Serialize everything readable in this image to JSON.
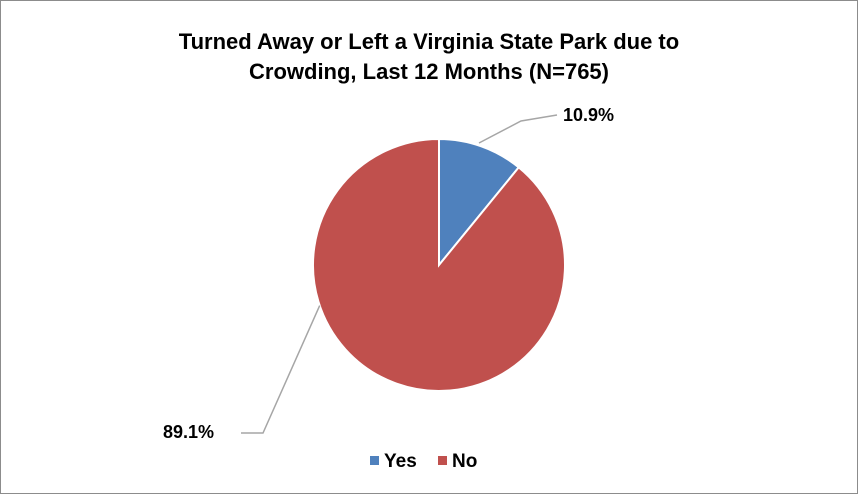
{
  "chart_data": {
    "type": "pie",
    "title": "Turned Away or Left a Virginia State Park due to Crowding, Last 12 Months (N=765)",
    "title_lines": [
      "Turned Away or Left a Virginia State Park due to",
      "Crowding, Last 12 Months (N=765)"
    ],
    "categories": [
      "Yes",
      "No"
    ],
    "values": [
      10.9,
      89.1
    ],
    "labels": [
      "10.9%",
      "89.1%"
    ],
    "colors": [
      "#4f81bd",
      "#c0504d"
    ],
    "legend": {
      "placement": "bottom",
      "entries": [
        "Yes",
        "No"
      ]
    }
  }
}
